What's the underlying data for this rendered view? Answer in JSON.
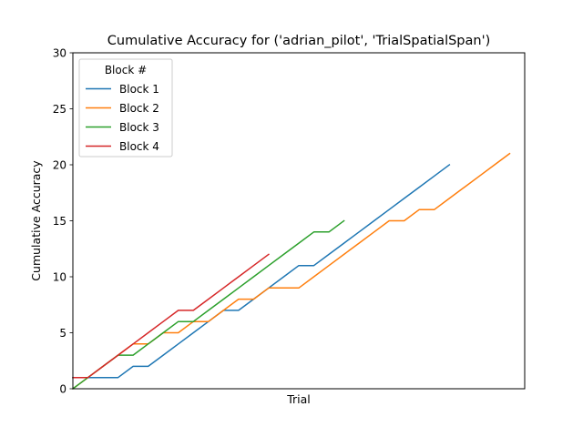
{
  "chart_data": {
    "type": "line",
    "title": "Cumulative Accuracy for ('adrian_pilot', 'TrialSpatialSpan')",
    "xlabel": "Trial",
    "ylabel": "Cumulative Accuracy",
    "xlim": [
      0,
      30
    ],
    "ylim": [
      0,
      30
    ],
    "yticks": [
      0,
      5,
      10,
      15,
      20,
      25,
      30
    ],
    "grid": false,
    "legend": {
      "title": "Block #",
      "placement": "top-left"
    },
    "series": [
      {
        "name": "Block 1",
        "color": "#1f77b4",
        "x": [
          0,
          1,
          2,
          3,
          4,
          5,
          6,
          7,
          8,
          9,
          10,
          11,
          12,
          13,
          14,
          15,
          16,
          17,
          18,
          19,
          20,
          21,
          22,
          23,
          24,
          25
        ],
        "y": [
          1,
          1,
          1,
          1,
          2,
          2,
          3,
          4,
          5,
          6,
          7,
          7,
          8,
          9,
          10,
          11,
          11,
          12,
          13,
          14,
          15,
          16,
          17,
          18,
          19,
          20
        ]
      },
      {
        "name": "Block 2",
        "color": "#ff7f0e",
        "x": [
          0,
          1,
          2,
          3,
          4,
          5,
          6,
          7,
          8,
          9,
          10,
          11,
          12,
          13,
          14,
          15,
          16,
          17,
          18,
          19,
          20,
          21,
          22,
          23,
          24,
          25,
          26,
          27,
          28,
          29
        ],
        "y": [
          0,
          1,
          2,
          3,
          4,
          4,
          5,
          5,
          6,
          6,
          7,
          8,
          8,
          9,
          9,
          9,
          10,
          11,
          12,
          13,
          14,
          15,
          15,
          16,
          16,
          17,
          18,
          19,
          20,
          21
        ]
      },
      {
        "name": "Block 3",
        "color": "#2ca02c",
        "x": [
          0,
          1,
          2,
          3,
          4,
          5,
          6,
          7,
          8,
          9,
          10,
          11,
          12,
          13,
          14,
          15,
          16,
          17,
          18
        ],
        "y": [
          0,
          1,
          2,
          3,
          3,
          4,
          5,
          6,
          6,
          7,
          8,
          9,
          10,
          11,
          12,
          13,
          14,
          14,
          15
        ]
      },
      {
        "name": "Block 4",
        "color": "#d62728",
        "x": [
          0,
          1,
          2,
          3,
          4,
          5,
          6,
          7,
          8,
          9,
          10,
          11,
          12,
          13
        ],
        "y": [
          1,
          1,
          2,
          3,
          4,
          5,
          6,
          7,
          7,
          8,
          9,
          10,
          11,
          12
        ]
      }
    ]
  }
}
